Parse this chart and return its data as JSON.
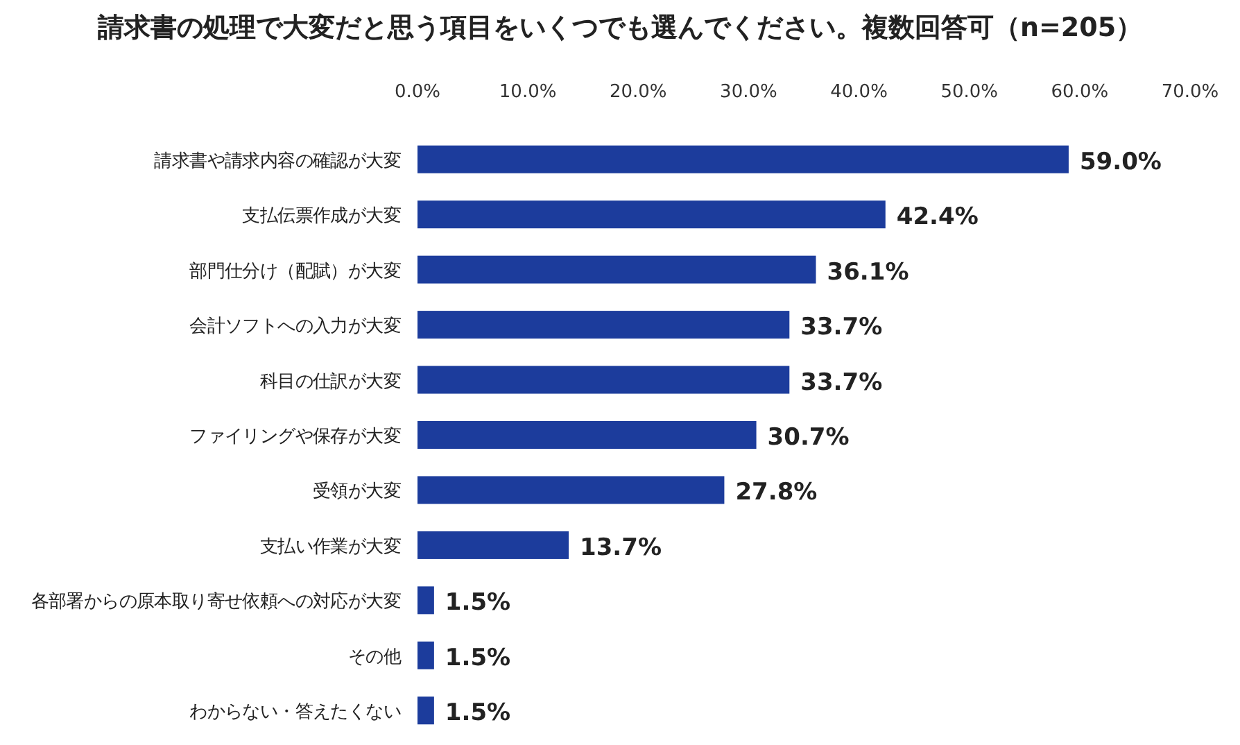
{
  "chart_data": {
    "type": "bar",
    "orientation": "horizontal",
    "title": "請求書の処理で大変だと思う項目をいくつでも選んでください。複数回答可（n=205）",
    "categories": [
      "請求書や請求内容の確認が大変",
      "支払伝票作成が大変",
      "部門仕分け（配賦）が大変",
      "会計ソフトへの入力が大変",
      "科目の仕訳が大変",
      "ファイリングや保存が大変",
      "受領が大変",
      "支払い作業が大変",
      "各部署からの原本取り寄せ依頼への対応が大変",
      "その他",
      "わからない・答えたくない"
    ],
    "values": [
      59.0,
      42.4,
      36.1,
      33.7,
      33.7,
      30.7,
      27.8,
      13.7,
      1.5,
      1.5,
      1.5
    ],
    "value_labels": [
      "59.0%",
      "42.4%",
      "36.1%",
      "33.7%",
      "33.7%",
      "30.7%",
      "27.8%",
      "13.7%",
      "1.5%",
      "1.5%",
      "1.5%"
    ],
    "color": "#1c3c9c",
    "xlim": [
      0,
      70
    ],
    "xticks": [
      {
        "value": 0,
        "label": "0.0%"
      },
      {
        "value": 10,
        "label": "10.0%"
      },
      {
        "value": 20,
        "label": "20.0%"
      },
      {
        "value": 30,
        "label": "30.0%"
      },
      {
        "value": 40,
        "label": "40.0%"
      },
      {
        "value": 50,
        "label": "50.0%"
      },
      {
        "value": 60,
        "label": "60.0%"
      },
      {
        "value": 70,
        "label": "70.0%"
      }
    ],
    "grid": false
  }
}
